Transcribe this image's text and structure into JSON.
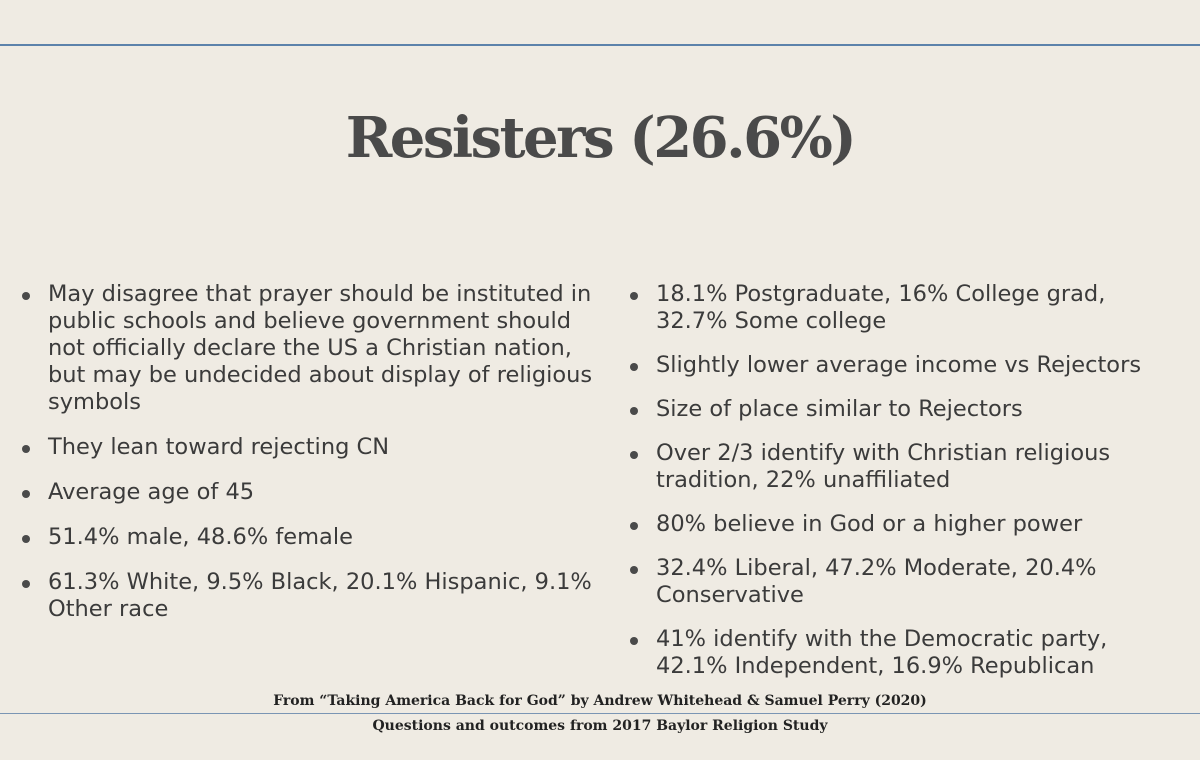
{
  "slide": {
    "title": "Resisters (26.6%)"
  },
  "left_bullets": [
    "May disagree that prayer should be instituted in public schools and believe government should not officially declare the US a Christian nation, but may be undecided about display of religious symbols",
    "They lean toward rejecting CN",
    "Average age of 45",
    "51.4% male, 48.6% female",
    "61.3% White, 9.5% Black, 20.1% Hispanic, 9.1% Other race"
  ],
  "right_bullets": [
    "18.1% Postgraduate, 16% College grad, 32.7% Some college",
    "Slightly lower average income vs Rejectors",
    "Size of place similar to Rejectors",
    "Over 2/3 identify with Christian religious tradition, 22% unaffiliated",
    "80% believe in God or a higher power",
    "32.4% Liberal, 47.2% Moderate, 20.4% Conservative",
    "41% identify with the Democratic party, 42.1% Independent, 16.9% Republican"
  ],
  "footer": {
    "source_line": "From “Taking America Back for God” by Andrew Whitehead & Samuel Perry (2020)",
    "study_line": "Questions and outcomes from 2017 Baylor Religion Study"
  },
  "colors": {
    "background": "#efebe3",
    "rule": "#5c82ab",
    "text": "#3b3b3b"
  }
}
